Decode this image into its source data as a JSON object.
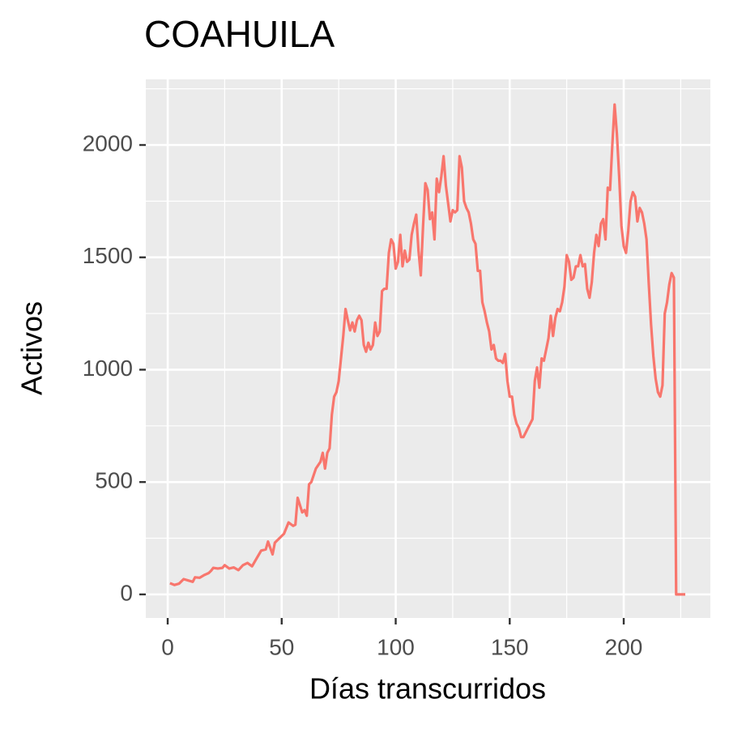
{
  "chart_data": {
    "type": "line",
    "title": "COAHUILA",
    "x_label": "Días transcurridos",
    "y_label": "Activos",
    "xlim": [
      -9.6,
      238
    ],
    "ylim": [
      -105,
      2292
    ],
    "xticks": [
      0,
      50,
      100,
      150,
      200
    ],
    "yticks": [
      0,
      500,
      1000,
      1500,
      2000
    ],
    "x_minor_grid": [
      25,
      75,
      125,
      175,
      225
    ],
    "y_minor_grid": [
      250,
      750,
      1250,
      1750,
      2250
    ],
    "grid": true,
    "x": [
      1,
      3,
      5,
      7,
      9,
      11,
      12,
      14,
      16,
      18,
      19,
      20,
      22,
      24,
      25,
      27,
      29,
      31,
      33,
      35,
      37,
      39,
      41,
      43,
      44,
      46,
      47,
      49,
      51,
      53,
      55,
      56,
      57,
      59,
      60,
      61,
      62,
      63,
      65,
      67,
      68,
      69,
      70,
      71,
      72,
      73,
      74,
      75,
      76,
      77,
      78,
      79,
      80,
      81,
      82,
      83,
      84,
      85,
      86,
      87,
      88,
      89,
      90,
      91,
      92,
      93,
      94,
      95,
      96,
      97,
      98,
      99,
      100,
      101,
      102,
      103,
      104,
      105,
      106,
      107,
      108,
      109,
      110,
      111,
      112,
      113,
      114,
      115,
      116,
      117,
      118,
      119,
      120,
      121,
      122,
      123,
      124,
      125,
      126,
      127,
      128,
      129,
      130,
      131,
      132,
      133,
      134,
      135,
      136,
      137,
      138,
      139,
      140,
      141,
      142,
      143,
      144,
      145,
      146,
      147,
      148,
      149,
      150,
      151,
      152,
      153,
      154,
      155,
      156,
      157,
      158,
      159,
      160,
      161,
      162,
      163,
      164,
      165,
      166,
      167,
      168,
      169,
      170,
      171,
      172,
      173,
      174,
      175,
      176,
      177,
      178,
      179,
      180,
      181,
      182,
      183,
      184,
      185,
      186,
      187,
      188,
      189,
      190,
      191,
      192,
      193,
      194,
      195,
      196,
      197,
      198,
      199,
      200,
      201,
      202,
      203,
      204,
      205,
      206,
      207,
      208,
      209,
      210,
      211,
      212,
      213,
      214,
      215,
      216,
      217,
      218,
      219,
      220,
      221,
      222,
      223,
      224,
      225,
      226,
      227
    ],
    "series": [
      {
        "color": "#f8766d",
        "values": [
          50,
          42,
          48,
          68,
          62,
          56,
          76,
          74,
          86,
          95,
          105,
          118,
          115,
          118,
          130,
          115,
          120,
          108,
          130,
          140,
          125,
          160,
          195,
          200,
          235,
          178,
          230,
          250,
          270,
          320,
          305,
          310,
          430,
          365,
          375,
          350,
          490,
          500,
          560,
          590,
          630,
          560,
          630,
          650,
          800,
          880,
          900,
          950,
          1050,
          1150,
          1270,
          1220,
          1175,
          1210,
          1170,
          1220,
          1240,
          1220,
          1110,
          1080,
          1120,
          1090,
          1110,
          1210,
          1150,
          1170,
          1350,
          1360,
          1360,
          1520,
          1580,
          1560,
          1450,
          1480,
          1600,
          1460,
          1530,
          1480,
          1490,
          1600,
          1650,
          1690,
          1530,
          1420,
          1640,
          1830,
          1800,
          1670,
          1700,
          1580,
          1850,
          1790,
          1860,
          1950,
          1820,
          1740,
          1660,
          1710,
          1700,
          1710,
          1950,
          1900,
          1750,
          1720,
          1700,
          1650,
          1580,
          1560,
          1440,
          1440,
          1300,
          1260,
          1210,
          1170,
          1090,
          1110,
          1050,
          1040,
          1040,
          1030,
          1070,
          950,
          880,
          880,
          800,
          760,
          740,
          700,
          700,
          720,
          740,
          760,
          780,
          950,
          1010,
          920,
          1050,
          1040,
          1090,
          1140,
          1240,
          1150,
          1230,
          1270,
          1260,
          1300,
          1370,
          1510,
          1480,
          1400,
          1410,
          1460,
          1460,
          1510,
          1460,
          1470,
          1360,
          1320,
          1390,
          1520,
          1600,
          1550,
          1650,
          1670,
          1580,
          1810,
          1800,
          2000,
          2180,
          2050,
          1860,
          1640,
          1550,
          1520,
          1620,
          1750,
          1790,
          1770,
          1660,
          1720,
          1700,
          1650,
          1580,
          1380,
          1200,
          1060,
          960,
          900,
          880,
          930,
          1250,
          1300,
          1380,
          1430,
          1410,
          0,
          0,
          0,
          0,
          0
        ]
      }
    ]
  }
}
